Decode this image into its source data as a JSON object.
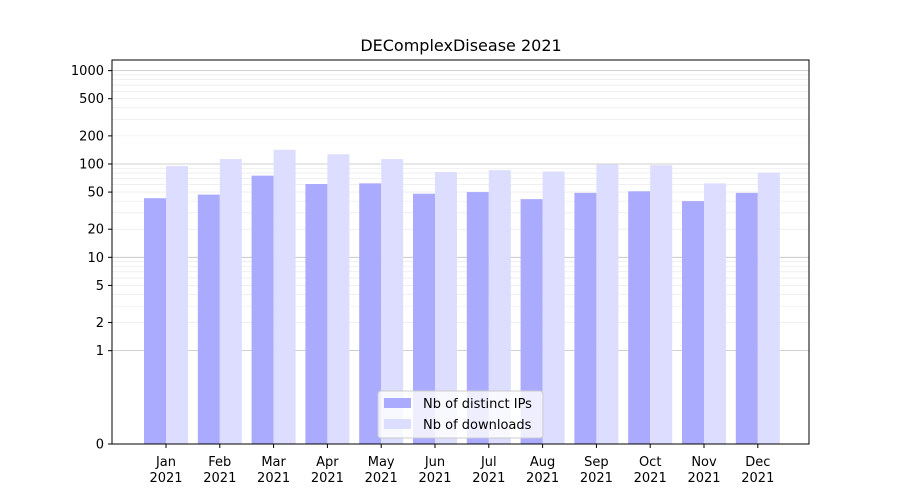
{
  "chart_data": {
    "type": "bar",
    "title": "DEComplexDisease 2021",
    "xlabel": "",
    "ylabel": "",
    "yscale": "symlog",
    "ylim": [
      0,
      1300
    ],
    "yticks": [
      0,
      1,
      2,
      5,
      10,
      20,
      50,
      100,
      200,
      500,
      1000
    ],
    "grid": true,
    "legend_position": "bottom-center",
    "categories": [
      [
        "Jan",
        "2021"
      ],
      [
        "Feb",
        "2021"
      ],
      [
        "Mar",
        "2021"
      ],
      [
        "Apr",
        "2021"
      ],
      [
        "May",
        "2021"
      ],
      [
        "Jun",
        "2021"
      ],
      [
        "Jul",
        "2021"
      ],
      [
        "Aug",
        "2021"
      ],
      [
        "Sep",
        "2021"
      ],
      [
        "Oct",
        "2021"
      ],
      [
        "Nov",
        "2021"
      ],
      [
        "Dec",
        "2021"
      ]
    ],
    "series": [
      {
        "name": "Nb of distinct IPs",
        "color": "#aaaaff",
        "values": [
          43,
          47,
          75,
          61,
          62,
          48,
          50,
          42,
          49,
          51,
          40,
          49
        ]
      },
      {
        "name": "Nb of downloads",
        "color": "#ddddff",
        "values": [
          95,
          113,
          142,
          127,
          113,
          82,
          86,
          83,
          99,
          97,
          62,
          81
        ]
      }
    ]
  }
}
